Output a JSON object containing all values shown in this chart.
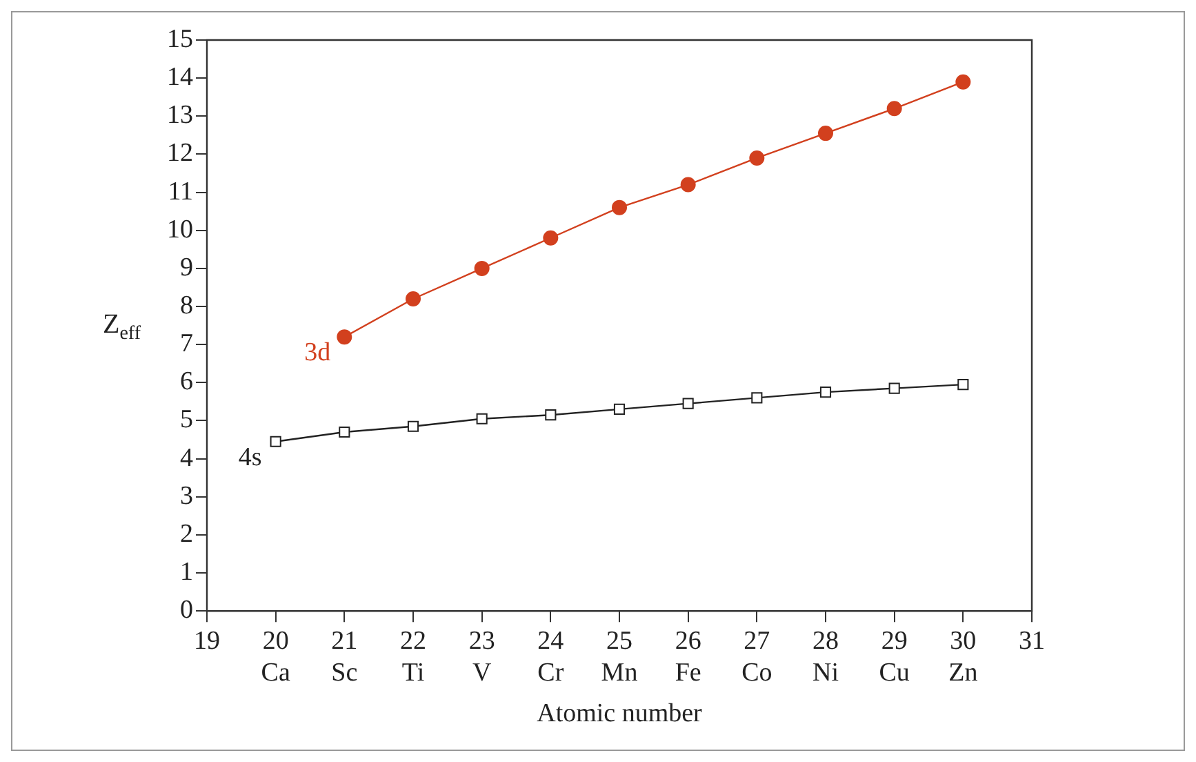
{
  "chart_data": {
    "type": "line",
    "xlabel": "Atomic number",
    "ylabel": "Z$_{eff}$",
    "xlim": [
      19,
      31
    ],
    "xticks": [
      19,
      {
        "value": 20,
        "label": "20\nCa"
      },
      {
        "value": 21,
        "label": "21\nSc"
      },
      {
        "value": 22,
        "label": "22\nTi"
      },
      {
        "value": 23,
        "label": "23\nV"
      },
      {
        "value": 24,
        "label": "24\nCr"
      },
      {
        "value": 25,
        "label": "25\nMn"
      },
      {
        "value": 26,
        "label": "26\nFe"
      },
      {
        "value": 27,
        "label": "27\nCo"
      },
      {
        "value": 28,
        "label": "28\nNi"
      },
      {
        "value": 29,
        "label": "29\nCu"
      },
      {
        "value": 30,
        "label": "30\nZn"
      },
      31
    ],
    "ylim": [
      0,
      15
    ],
    "yticks": [
      0,
      1,
      2,
      3,
      4,
      5,
      6,
      7,
      8,
      9,
      10,
      11,
      12,
      13,
      14,
      15
    ],
    "grid": false,
    "legend": false,
    "series": [
      {
        "name": "3d",
        "color": "#d2401e",
        "marker": "circle",
        "x": [
          21,
          22,
          23,
          24,
          25,
          26,
          27,
          28,
          29,
          30
        ],
        "values": [
          7.2,
          8.2,
          9.0,
          9.8,
          10.6,
          11.2,
          11.9,
          12.55,
          13.2,
          13.9
        ]
      },
      {
        "name": "4s",
        "color": "#222222",
        "marker": "square",
        "x": [
          20,
          21,
          22,
          23,
          24,
          25,
          26,
          27,
          28,
          29,
          30
        ],
        "values": [
          4.45,
          4.7,
          4.85,
          5.05,
          5.15,
          5.3,
          5.45,
          5.6,
          5.75,
          5.85,
          5.95
        ]
      }
    ]
  }
}
